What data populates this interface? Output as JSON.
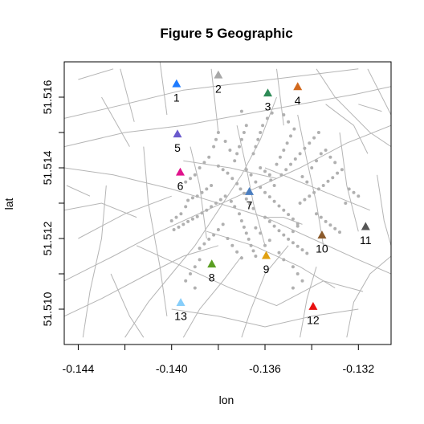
{
  "chart_data": {
    "type": "scatter",
    "title": "Figure 5 Geographic",
    "xlabel": "lon",
    "ylabel": "lat",
    "xlim": [
      -0.1446,
      -0.1306
    ],
    "ylim": [
      51.509,
      51.517
    ],
    "x_ticks": [
      -0.144,
      -0.142,
      -0.14,
      -0.138,
      -0.136,
      -0.134,
      -0.132
    ],
    "x_tick_labels": [
      "-0.144",
      "-0.140",
      "-0.136",
      "-0.132"
    ],
    "x_tick_label_values": [
      -0.144,
      -0.14,
      -0.136,
      -0.132
    ],
    "y_ticks": [
      51.51,
      51.511,
      51.512,
      51.513,
      51.514,
      51.515,
      51.516
    ],
    "y_tick_labels": [
      "51.510",
      "51.512",
      "51.514",
      "51.516"
    ],
    "y_tick_label_values": [
      51.51,
      51.512,
      51.514,
      51.516
    ],
    "grid": false,
    "colors": {
      "roads": "#b5b5b5",
      "cases": "#b0b0b0",
      "frame": "#000000"
    },
    "pumps": [
      {
        "label": "1",
        "lon": -0.13979,
        "lat": 51.51638,
        "color": "#1e7bff"
      },
      {
        "label": "2",
        "lon": -0.138,
        "lat": 51.51663,
        "color": "#a8a8a8"
      },
      {
        "label": "3",
        "lon": -0.13588,
        "lat": 51.51612,
        "color": "#2e8b57"
      },
      {
        "label": "4",
        "lon": -0.1346,
        "lat": 51.5163,
        "color": "#d2691e"
      },
      {
        "label": "5",
        "lon": -0.13975,
        "lat": 51.51496,
        "color": "#6a5acd"
      },
      {
        "label": "6",
        "lon": -0.13963,
        "lat": 51.51388,
        "color": "#e0138c"
      },
      {
        "label": "7",
        "lon": -0.13667,
        "lat": 51.51333,
        "color": "#4a7dbf"
      },
      {
        "label": "8",
        "lon": -0.13828,
        "lat": 51.51128,
        "color": "#5a9e22"
      },
      {
        "label": "9",
        "lon": -0.13595,
        "lat": 51.51152,
        "color": "#e0a010"
      },
      {
        "label": "10",
        "lon": -0.13356,
        "lat": 51.5121,
        "color": "#8b5a2b"
      },
      {
        "label": "11",
        "lon": -0.13169,
        "lat": 51.51234,
        "color": "#555555"
      },
      {
        "label": "12",
        "lon": -0.13394,
        "lat": 51.51008,
        "color": "#e81010"
      },
      {
        "label": "13",
        "lon": -0.13961,
        "lat": 51.51019,
        "color": "#87cefa"
      }
    ],
    "roads": [
      [
        [
          -0.1446,
          51.5154
        ],
        [
          -0.142,
          51.5158
        ],
        [
          -0.1395,
          51.5162
        ],
        [
          -0.137,
          51.5164
        ],
        [
          -0.1345,
          51.5166
        ],
        [
          -0.132,
          51.5168
        ]
      ],
      [
        [
          -0.1446,
          51.5146
        ],
        [
          -0.142,
          51.515
        ],
        [
          -0.1395,
          51.5152
        ],
        [
          -0.137,
          51.5155
        ],
        [
          -0.1345,
          51.5158
        ],
        [
          -0.132,
          51.5161
        ],
        [
          -0.1306,
          51.5163
        ]
      ],
      [
        [
          -0.144,
          51.5165
        ],
        [
          -0.1425,
          51.5168
        ]
      ],
      [
        [
          -0.143,
          51.516
        ],
        [
          -0.1418,
          51.5146
        ]
      ],
      [
        [
          -0.1422,
          51.5168
        ],
        [
          -0.1416,
          51.5153
        ]
      ],
      [
        [
          -0.1405,
          51.517
        ],
        [
          -0.1402,
          51.5155
        ]
      ],
      [
        [
          -0.1383,
          51.5168
        ],
        [
          -0.138,
          51.515
        ]
      ],
      [
        [
          -0.1355,
          51.5168
        ],
        [
          -0.1352,
          51.5152
        ]
      ],
      [
        [
          -0.1338,
          51.5168
        ],
        [
          -0.133,
          51.516
        ]
      ],
      [
        [
          -0.1316,
          51.5168
        ],
        [
          -0.1306,
          51.5155
        ]
      ],
      [
        [
          -0.133,
          51.516
        ],
        [
          -0.1315,
          51.515
        ],
        [
          -0.1306,
          51.5146
        ]
      ],
      [
        [
          -0.132,
          51.5158
        ],
        [
          -0.131,
          51.5156
        ]
      ],
      [
        [
          -0.1446,
          51.514
        ],
        [
          -0.1425,
          51.5138
        ],
        [
          -0.14,
          51.5134
        ],
        [
          -0.138,
          51.513
        ],
        [
          -0.136,
          51.5126
        ],
        [
          -0.134,
          51.512
        ],
        [
          -0.132,
          51.5114
        ],
        [
          -0.1306,
          51.511
        ]
      ],
      [
        [
          -0.144,
          51.512
        ],
        [
          -0.142,
          51.5127
        ],
        [
          -0.14,
          51.5132
        ]
      ],
      [
        [
          -0.1446,
          51.5108
        ],
        [
          -0.1425,
          51.5115
        ],
        [
          -0.1405,
          51.5122
        ],
        [
          -0.1385,
          51.5128
        ],
        [
          -0.1365,
          51.5134
        ],
        [
          -0.1345,
          51.514
        ],
        [
          -0.1325,
          51.5147
        ],
        [
          -0.1306,
          51.5152
        ]
      ],
      [
        [
          -0.1446,
          51.5098
        ],
        [
          -0.143,
          51.5103
        ],
        [
          -0.141,
          51.511
        ],
        [
          -0.1395,
          51.5115
        ],
        [
          -0.138,
          51.5118
        ]
      ],
      [
        [
          -0.142,
          51.5092
        ],
        [
          -0.141,
          51.5102
        ],
        [
          -0.14,
          51.511
        ],
        [
          -0.139,
          51.5118
        ],
        [
          -0.138,
          51.5128
        ],
        [
          -0.137,
          51.5138
        ],
        [
          -0.1362,
          51.5148
        ],
        [
          -0.1355,
          51.516
        ]
      ],
      [
        [
          -0.1395,
          51.5092
        ],
        [
          -0.1388,
          51.51
        ],
        [
          -0.1378,
          51.5108
        ],
        [
          -0.137,
          51.5115
        ]
      ],
      [
        [
          -0.137,
          51.5092
        ],
        [
          -0.1366,
          51.51
        ],
        [
          -0.136,
          51.511
        ],
        [
          -0.135,
          51.5118
        ]
      ],
      [
        [
          -0.1345,
          51.5092
        ],
        [
          -0.1342,
          51.5103
        ],
        [
          -0.1338,
          51.5112
        ]
      ],
      [
        [
          -0.1325,
          51.5092
        ],
        [
          -0.1322,
          51.5102
        ],
        [
          -0.1315,
          51.511
        ],
        [
          -0.1306,
          51.5115
        ]
      ],
      [
        [
          -0.1446,
          51.5128
        ],
        [
          -0.143,
          51.513
        ],
        [
          -0.1415,
          51.5126
        ]
      ],
      [
        [
          -0.1438,
          51.5092
        ],
        [
          -0.1435,
          51.5105
        ],
        [
          -0.143,
          51.512
        ],
        [
          -0.1428,
          51.5135
        ]
      ],
      [
        [
          -0.1412,
          51.5146
        ],
        [
          -0.141,
          51.513
        ],
        [
          -0.1405,
          51.5112
        ],
        [
          -0.1402,
          51.5098
        ]
      ],
      [
        [
          -0.1392,
          51.5146
        ],
        [
          -0.1388,
          51.5135
        ],
        [
          -0.1385,
          51.512
        ]
      ],
      [
        [
          -0.1372,
          51.5152
        ],
        [
          -0.1368,
          51.514
        ],
        [
          -0.1365,
          51.513
        ],
        [
          -0.136,
          51.5118
        ]
      ],
      [
        [
          -0.1346,
          51.5155
        ],
        [
          -0.1342,
          51.5142
        ],
        [
          -0.1338,
          51.513
        ],
        [
          -0.1335,
          51.5118
        ]
      ],
      [
        [
          -0.1328,
          51.515
        ],
        [
          -0.1325,
          51.5135
        ],
        [
          -0.132,
          51.5122
        ]
      ],
      [
        [
          -0.1312,
          51.5138
        ],
        [
          -0.1309,
          51.5125
        ],
        [
          -0.1306,
          51.5118
        ]
      ],
      [
        [
          -0.14,
          51.51
        ],
        [
          -0.138,
          51.5098
        ],
        [
          -0.136,
          51.5095
        ],
        [
          -0.134,
          51.5098
        ],
        [
          -0.132,
          51.51
        ]
      ],
      [
        [
          -0.1415,
          51.5118
        ],
        [
          -0.1395,
          51.5112
        ],
        [
          -0.1375,
          51.5106
        ],
        [
          -0.1355,
          51.5101
        ],
        [
          -0.1335,
          51.5108
        ],
        [
          -0.1318,
          51.5105
        ]
      ],
      [
        [
          -0.1385,
          51.5122
        ],
        [
          -0.1365,
          51.5118
        ],
        [
          -0.1345,
          51.5112
        ],
        [
          -0.133,
          51.5106
        ]
      ],
      [
        [
          -0.1445,
          51.5135
        ],
        [
          -0.1435,
          51.5132
        ]
      ],
      [
        [
          -0.136,
          51.514
        ],
        [
          -0.1345,
          51.5136
        ],
        [
          -0.133,
          51.5132
        ],
        [
          -0.1315,
          51.5128
        ]
      ],
      [
        [
          -0.1395,
          51.5142
        ],
        [
          -0.1375,
          51.514
        ],
        [
          -0.1355,
          51.5137
        ]
      ],
      [
        [
          -0.1334,
          51.5158
        ],
        [
          -0.1322,
          51.5152
        ],
        [
          -0.1316,
          51.5144
        ]
      ],
      [
        [
          -0.1426,
          51.511
        ],
        [
          -0.1418,
          51.5098
        ],
        [
          -0.1412,
          51.5092
        ]
      ],
      [
        [
          -0.136,
          51.5126
        ],
        [
          -0.1352,
          51.5126
        ],
        [
          -0.1344,
          51.5124
        ]
      ]
    ],
    "cases": [
      [
        -0.13705,
        51.5134
      ],
      [
        -0.1369,
        51.51328
      ],
      [
        -0.1368,
        51.51312
      ],
      [
        -0.13665,
        51.51298
      ],
      [
        -0.1365,
        51.51285
      ],
      [
        -0.1372,
        51.51355
      ],
      [
        -0.1374,
        51.5137
      ],
      [
        -0.1376,
        51.51385
      ],
      [
        -0.1378,
        51.51395
      ],
      [
        -0.138,
        51.51405
      ],
      [
        -0.1364,
        51.5136
      ],
      [
        -0.1362,
        51.51345
      ],
      [
        -0.136,
        51.5133
      ],
      [
        -0.1358,
        51.51318
      ],
      [
        -0.1356,
        51.51305
      ],
      [
        -0.1354,
        51.51292
      ],
      [
        -0.1352,
        51.5128
      ],
      [
        -0.135,
        51.51268
      ],
      [
        -0.1348,
        51.51255
      ],
      [
        -0.1346,
        51.51242
      ],
      [
        -0.1377,
        51.5132
      ],
      [
        -0.1379,
        51.5131
      ],
      [
        -0.1381,
        51.513
      ],
      [
        -0.1383,
        51.5129
      ],
      [
        -0.1385,
        51.5128
      ],
      [
        -0.1387,
        51.51272
      ],
      [
        -0.1389,
        51.51262
      ],
      [
        -0.1391,
        51.51255
      ],
      [
        -0.1393,
        51.51248
      ],
      [
        -0.1395,
        51.5124
      ],
      [
        -0.1397,
        51.51232
      ],
      [
        -0.1399,
        51.51225
      ],
      [
        -0.1371,
        51.5127
      ],
      [
        -0.137,
        51.5125
      ],
      [
        -0.1369,
        51.51232
      ],
      [
        -0.1368,
        51.51215
      ],
      [
        -0.1367,
        51.51198
      ],
      [
        -0.1366,
        51.5118
      ],
      [
        -0.1365,
        51.51165
      ],
      [
        -0.1364,
        51.5115
      ],
      [
        -0.1373,
        51.5142
      ],
      [
        -0.1372,
        51.5144
      ],
      [
        -0.1371,
        51.5146
      ],
      [
        -0.137,
        51.5148
      ],
      [
        -0.1369,
        51.515
      ],
      [
        -0.1368,
        51.5152
      ],
      [
        -0.1375,
        51.5145
      ],
      [
        -0.1377,
        51.51475
      ],
      [
        -0.1355,
        51.5141
      ],
      [
        -0.13535,
        51.5143
      ],
      [
        -0.1352,
        51.5145
      ],
      [
        -0.13505,
        51.5147
      ],
      [
        -0.1349,
        51.5149
      ],
      [
        -0.13475,
        51.5151
      ],
      [
        -0.1353,
        51.5138
      ],
      [
        -0.1351,
        51.51395
      ],
      [
        -0.1349,
        51.5141
      ],
      [
        -0.1347,
        51.51425
      ],
      [
        -0.1345,
        51.5144
      ],
      [
        -0.1343,
        51.51455
      ],
      [
        -0.1341,
        51.5147
      ],
      [
        -0.1339,
        51.51485
      ],
      [
        -0.1337,
        51.515
      ],
      [
        -0.1362,
        51.514
      ],
      [
        -0.136,
        51.5139
      ],
      [
        -0.1358,
        51.5138
      ],
      [
        -0.1383,
        51.5135
      ],
      [
        -0.1385,
        51.5134
      ],
      [
        -0.1387,
        51.5133
      ],
      [
        -0.1389,
        51.5132
      ],
      [
        -0.1391,
        51.51315
      ],
      [
        -0.1393,
        51.51308
      ],
      [
        -0.136,
        51.5126
      ],
      [
        -0.1358,
        51.51248
      ],
      [
        -0.1356,
        51.51235
      ],
      [
        -0.1354,
        51.51222
      ],
      [
        -0.1352,
        51.5121
      ],
      [
        -0.135,
        51.51198
      ],
      [
        -0.1348,
        51.51188
      ],
      [
        -0.1346,
        51.51178
      ],
      [
        -0.1344,
        51.51168
      ],
      [
        -0.1342,
        51.51158
      ],
      [
        -0.1378,
        51.5124
      ],
      [
        -0.138,
        51.51225
      ],
      [
        -0.1382,
        51.5121
      ],
      [
        -0.1384,
        51.51198
      ],
      [
        -0.1386,
        51.51185
      ],
      [
        -0.1388,
        51.51172
      ],
      [
        -0.1376,
        51.512
      ],
      [
        -0.1374,
        51.5118
      ],
      [
        -0.1372,
        51.51162
      ],
      [
        -0.137,
        51.51145
      ],
      [
        -0.1345,
        51.513
      ],
      [
        -0.1343,
        51.5131
      ],
      [
        -0.1341,
        51.5132
      ],
      [
        -0.1339,
        51.5133
      ],
      [
        -0.1337,
        51.5134
      ],
      [
        -0.1335,
        51.5135
      ],
      [
        -0.1333,
        51.51362
      ],
      [
        -0.1331,
        51.51372
      ],
      [
        -0.1329,
        51.51385
      ],
      [
        -0.1327,
        51.51395
      ],
      [
        -0.1338,
        51.5127
      ],
      [
        -0.1336,
        51.5126
      ],
      [
        -0.1334,
        51.51248
      ],
      [
        -0.1332,
        51.51238
      ],
      [
        -0.133,
        51.51228
      ],
      [
        -0.1328,
        51.51218
      ],
      [
        -0.139,
        51.5138
      ],
      [
        -0.1392,
        51.5137
      ],
      [
        -0.1394,
        51.5136
      ],
      [
        -0.1388,
        51.514
      ],
      [
        -0.1386,
        51.51415
      ],
      [
        -0.1384,
        51.5143
      ],
      [
        -0.1365,
        51.5144
      ],
      [
        -0.1364,
        51.5146
      ],
      [
        -0.1363,
        51.5148
      ],
      [
        -0.1362,
        51.515
      ],
      [
        -0.1361,
        51.5152
      ],
      [
        -0.1359,
        51.5154
      ],
      [
        -0.1357,
        51.51555
      ],
      [
        -0.1382,
        51.5146
      ],
      [
        -0.1381,
        51.5148
      ],
      [
        -0.138,
        51.515
      ],
      [
        -0.134,
        51.514
      ],
      [
        -0.1338,
        51.5142
      ],
      [
        -0.1336,
        51.5144
      ],
      [
        -0.1334,
        51.5145
      ],
      [
        -0.1332,
        51.5143
      ],
      [
        -0.133,
        51.51415
      ],
      [
        -0.1324,
        51.5134
      ],
      [
        -0.1322,
        51.5133
      ],
      [
        -0.132,
        51.5132
      ],
      [
        -0.13255,
        51.513
      ],
      [
        -0.1364,
        51.5123
      ],
      [
        -0.1362,
        51.51215
      ],
      [
        -0.1354,
        51.5116
      ],
      [
        -0.1352,
        51.5114
      ],
      [
        -0.1396,
        51.5127
      ],
      [
        -0.1398,
        51.5126
      ],
      [
        -0.14,
        51.5125
      ],
      [
        -0.1394,
        51.5129
      ],
      [
        -0.1373,
        51.5129
      ],
      [
        -0.13745,
        51.51305
      ],
      [
        -0.1356,
        51.5135
      ],
      [
        -0.13575,
        51.51365
      ],
      [
        -0.1342,
        51.5136
      ],
      [
        -0.1344,
        51.51375
      ],
      [
        -0.1366,
        51.5138
      ],
      [
        -0.1368,
        51.51395
      ],
      [
        -0.136,
        51.5118
      ],
      [
        -0.1358,
        51.51195
      ],
      [
        -0.1348,
        51.5122
      ],
      [
        -0.1346,
        51.51235
      ],
      [
        -0.1388,
        51.5114
      ],
      [
        -0.139,
        51.5112
      ],
      [
        -0.1392,
        51.511
      ],
      [
        -0.1394,
        51.5108
      ],
      [
        -0.1348,
        51.5112
      ],
      [
        -0.1346,
        51.511
      ],
      [
        -0.1344,
        51.5108
      ],
      [
        -0.135,
        51.5153
      ],
      [
        -0.1352,
        51.5155
      ],
      [
        -0.137,
        51.5156
      ],
      [
        -0.1348,
        51.5106
      ],
      [
        -0.139,
        51.5106
      ]
    ]
  }
}
